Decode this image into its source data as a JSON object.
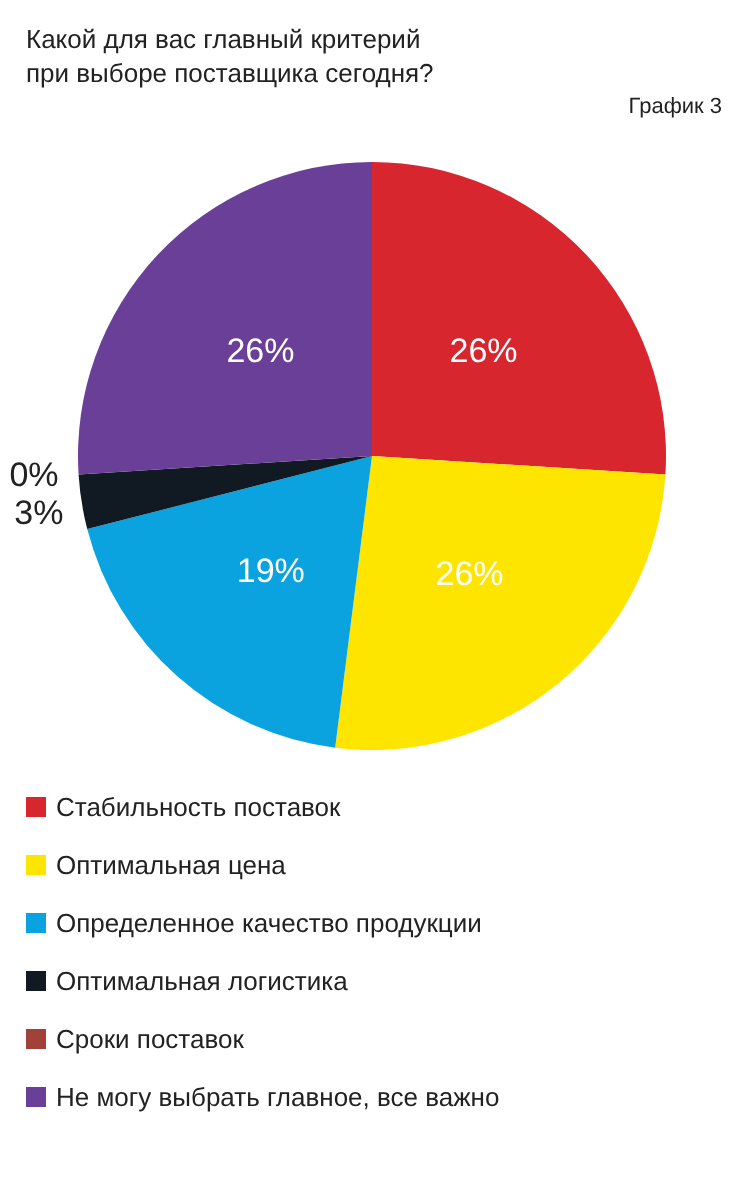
{
  "chart_data": {
    "type": "pie",
    "title": "Какой для вас главный критерий\nпри выборе поставщика сегодня?",
    "annotations": [
      "График 3"
    ],
    "categories": [
      "Стабильность поставок",
      "Оптимальная цена",
      "Определенное качество продукции",
      "Оптимальная логистика",
      "Сроки поставок",
      "Не могу выбрать главное, все важно"
    ],
    "values": [
      26,
      26,
      19,
      3,
      0,
      26
    ],
    "value_labels": [
      "26%",
      "26%",
      "19%",
      "3%",
      "0%",
      "26%"
    ],
    "colors": [
      "#d7262e",
      "#fde500",
      "#0aa3e0",
      "#111a22",
      "#a0413a",
      "#6a3f97"
    ],
    "legend": "bottom"
  }
}
